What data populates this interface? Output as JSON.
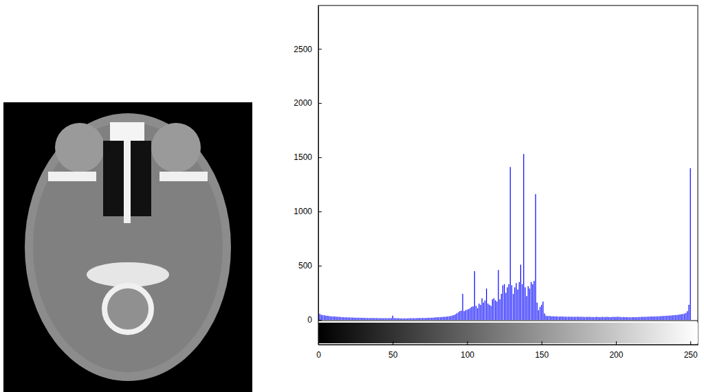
{
  "chart_data": {
    "type": "bar",
    "color": "#0000ff",
    "x": [
      0,
      1,
      2,
      3,
      4,
      5,
      6,
      7,
      8,
      9,
      10,
      11,
      12,
      13,
      14,
      15,
      16,
      17,
      18,
      19,
      20,
      21,
      22,
      23,
      24,
      25,
      26,
      27,
      28,
      29,
      30,
      31,
      32,
      33,
      34,
      35,
      36,
      37,
      38,
      39,
      40,
      41,
      42,
      43,
      44,
      45,
      46,
      47,
      48,
      49,
      50,
      51,
      52,
      53,
      54,
      55,
      56,
      57,
      58,
      59,
      60,
      61,
      62,
      63,
      64,
      65,
      66,
      67,
      68,
      69,
      70,
      71,
      72,
      73,
      74,
      75,
      76,
      77,
      78,
      79,
      80,
      81,
      82,
      83,
      84,
      85,
      86,
      87,
      88,
      89,
      90,
      91,
      92,
      93,
      94,
      95,
      96,
      97,
      98,
      99,
      100,
      101,
      102,
      103,
      104,
      105,
      106,
      107,
      108,
      109,
      110,
      111,
      112,
      113,
      114,
      115,
      116,
      117,
      118,
      119,
      120,
      121,
      122,
      123,
      124,
      125,
      126,
      127,
      128,
      129,
      130,
      131,
      132,
      133,
      134,
      135,
      136,
      137,
      138,
      139,
      140,
      141,
      142,
      143,
      144,
      145,
      146,
      147,
      148,
      149,
      150,
      151,
      152,
      153,
      154,
      155,
      156,
      157,
      158,
      159,
      160,
      161,
      162,
      163,
      164,
      165,
      166,
      167,
      168,
      169,
      170,
      171,
      172,
      173,
      174,
      175,
      176,
      177,
      178,
      179,
      180,
      181,
      182,
      183,
      184,
      185,
      186,
      187,
      188,
      189,
      190,
      191,
      192,
      193,
      194,
      195,
      196,
      197,
      198,
      199,
      200,
      201,
      202,
      203,
      204,
      205,
      206,
      207,
      208,
      209,
      210,
      211,
      212,
      213,
      214,
      215,
      216,
      217,
      218,
      219,
      220,
      221,
      222,
      223,
      224,
      225,
      226,
      227,
      228,
      229,
      230,
      231,
      232,
      233,
      234,
      235,
      236,
      237,
      238,
      239,
      240,
      241,
      242,
      243,
      244,
      245,
      246,
      247,
      248,
      249,
      250,
      251,
      252,
      253,
      254,
      255
    ],
    "values": [
      70,
      55,
      48,
      45,
      42,
      40,
      38,
      36,
      34,
      33,
      32,
      31,
      30,
      29,
      28,
      27,
      26,
      25,
      24,
      24,
      23,
      23,
      22,
      22,
      21,
      21,
      20,
      20,
      20,
      19,
      19,
      19,
      18,
      18,
      18,
      18,
      17,
      17,
      17,
      17,
      17,
      16,
      16,
      16,
      16,
      16,
      16,
      16,
      16,
      17,
      40,
      17,
      16,
      16,
      16,
      15,
      15,
      15,
      15,
      15,
      15,
      16,
      16,
      16,
      16,
      16,
      16,
      17,
      17,
      17,
      18,
      18,
      18,
      19,
      19,
      20,
      20,
      21,
      22,
      23,
      24,
      25,
      26,
      27,
      28,
      29,
      30,
      32,
      34,
      36,
      40,
      45,
      50,
      60,
      70,
      80,
      85,
      240,
      80,
      90,
      95,
      100,
      110,
      120,
      125,
      450,
      130,
      110,
      150,
      140,
      200,
      160,
      180,
      290,
      150,
      140,
      130,
      190,
      200,
      180,
      170,
      460,
      190,
      240,
      320,
      330,
      250,
      300,
      330,
      1410,
      320,
      240,
      300,
      340,
      280,
      350,
      510,
      330,
      1530,
      300,
      220,
      310,
      290,
      350,
      330,
      360,
      1160,
      160,
      90,
      120,
      140,
      170,
      60,
      40,
      35,
      38,
      35,
      33,
      35,
      32,
      33,
      32,
      30,
      32,
      31,
      30,
      30,
      29,
      30,
      28,
      30,
      29,
      28,
      29,
      30,
      28,
      28,
      29,
      28,
      27,
      28,
      27,
      28,
      27,
      27,
      26,
      27,
      28,
      27,
      26,
      27,
      28,
      27,
      27,
      28,
      27,
      26,
      27,
      28,
      27,
      28,
      29,
      28,
      27,
      26,
      27,
      26,
      25,
      25,
      24,
      24,
      25,
      25,
      26,
      26,
      27,
      27,
      28,
      28,
      29,
      29,
      30,
      30,
      31,
      31,
      32,
      32,
      33,
      33,
      34,
      35,
      36,
      37,
      38,
      38,
      39,
      40,
      41,
      42,
      44,
      45,
      46,
      48,
      50,
      52,
      55,
      58,
      65,
      80,
      140,
      1400,
      0,
      0,
      0,
      0,
      0
    ],
    "xlim": [
      0,
      255
    ],
    "xticks": [
      0,
      50,
      100,
      150,
      200,
      250
    ],
    "ylim": [
      0,
      2900
    ],
    "yticks": [
      0,
      500,
      1000,
      1500,
      2000,
      2500
    ]
  }
}
